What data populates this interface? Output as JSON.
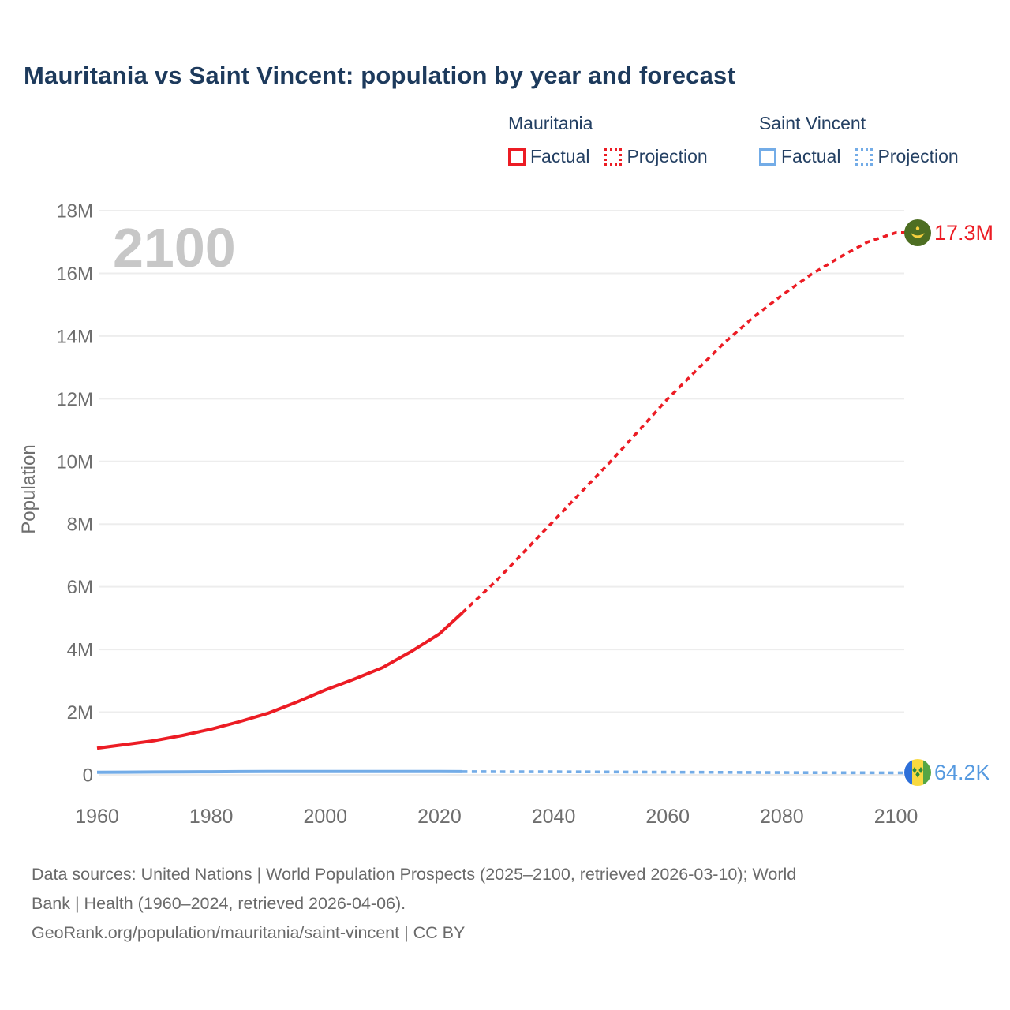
{
  "title": "Mauritania vs Saint Vincent: population by year and forecast",
  "legend": {
    "groups": [
      {
        "label": "Mauritania",
        "color": "#ec1c24",
        "entries": [
          {
            "label": "Factual",
            "style": "solid"
          },
          {
            "label": "Projection",
            "style": "dotted"
          }
        ]
      },
      {
        "label": "Saint Vincent",
        "color": "#73ace7",
        "entries": [
          {
            "label": "Factual",
            "style": "solid"
          },
          {
            "label": "Projection",
            "style": "dotted"
          }
        ]
      }
    ]
  },
  "chart_data": {
    "type": "line",
    "title": "Mauritania vs Saint Vincent: population by year and forecast",
    "xlabel": "",
    "ylabel": "Population",
    "watermark": "2100",
    "y_unit": "millions",
    "xlim": [
      1960,
      2100
    ],
    "ylim": [
      0,
      18
    ],
    "grid": "horizontal",
    "legend_position": "top-right",
    "x_ticks": [
      1960,
      1980,
      2000,
      2020,
      2040,
      2060,
      2080,
      2100
    ],
    "y_ticks": [
      [
        0,
        "0"
      ],
      [
        2,
        "2M"
      ],
      [
        4,
        "4M"
      ],
      [
        6,
        "6M"
      ],
      [
        8,
        "8M"
      ],
      [
        10,
        "10M"
      ],
      [
        12,
        "12M"
      ],
      [
        14,
        "14M"
      ],
      [
        16,
        "16M"
      ],
      [
        18,
        "18M"
      ]
    ],
    "series": [
      {
        "name": "Mauritania Factual",
        "color": "#ec1c24",
        "dash": "solid",
        "points": [
          [
            1960,
            0.85
          ],
          [
            1965,
            0.97
          ],
          [
            1970,
            1.09
          ],
          [
            1975,
            1.26
          ],
          [
            1980,
            1.46
          ],
          [
            1985,
            1.7
          ],
          [
            1990,
            1.97
          ],
          [
            1995,
            2.32
          ],
          [
            2000,
            2.71
          ],
          [
            2005,
            3.05
          ],
          [
            2010,
            3.42
          ],
          [
            2015,
            3.93
          ],
          [
            2020,
            4.5
          ],
          [
            2024,
            5.17
          ]
        ]
      },
      {
        "name": "Mauritania Projection",
        "color": "#ec1c24",
        "dash": "dotted",
        "points": [
          [
            2024,
            5.17
          ],
          [
            2030,
            6.2
          ],
          [
            2035,
            7.15
          ],
          [
            2040,
            8.1
          ],
          [
            2045,
            9.05
          ],
          [
            2050,
            10.0
          ],
          [
            2055,
            11.0
          ],
          [
            2060,
            12.0
          ],
          [
            2065,
            12.9
          ],
          [
            2070,
            13.8
          ],
          [
            2075,
            14.6
          ],
          [
            2080,
            15.3
          ],
          [
            2085,
            15.95
          ],
          [
            2090,
            16.5
          ],
          [
            2095,
            17.0
          ],
          [
            2100,
            17.3
          ]
        ]
      },
      {
        "name": "Saint Vincent Factual",
        "color": "#73ace7",
        "dash": "solid",
        "points": [
          [
            1960,
            0.081
          ],
          [
            1965,
            0.085
          ],
          [
            1970,
            0.09
          ],
          [
            1975,
            0.094
          ],
          [
            1980,
            0.098
          ],
          [
            1985,
            0.102
          ],
          [
            1990,
            0.107
          ],
          [
            1995,
            0.108
          ],
          [
            2000,
            0.109
          ],
          [
            2005,
            0.109
          ],
          [
            2010,
            0.109
          ],
          [
            2015,
            0.108
          ],
          [
            2020,
            0.105
          ],
          [
            2024,
            0.103
          ]
        ]
      },
      {
        "name": "Saint Vincent Projection",
        "color": "#73ace7",
        "dash": "dotted",
        "points": [
          [
            2024,
            0.103
          ],
          [
            2030,
            0.101
          ],
          [
            2040,
            0.097
          ],
          [
            2050,
            0.092
          ],
          [
            2060,
            0.086
          ],
          [
            2070,
            0.08
          ],
          [
            2080,
            0.074
          ],
          [
            2090,
            0.069
          ],
          [
            2100,
            0.0642
          ]
        ]
      }
    ],
    "end_labels": [
      {
        "series": "Mauritania",
        "text": "17.3M",
        "color": "#ec1c24"
      },
      {
        "series": "Saint Vincent",
        "text": "64.2K",
        "color": "#569ae0"
      }
    ]
  },
  "footer": {
    "lines": [
      "Data sources: United Nations | World Population Prospects (2025–2100, retrieved 2026-03-10); World",
      "Bank | Health (1960–2024, retrieved 2026-04-06).",
      "GeoRank.org/population/mauritania/saint-vincent | CC BY"
    ]
  }
}
